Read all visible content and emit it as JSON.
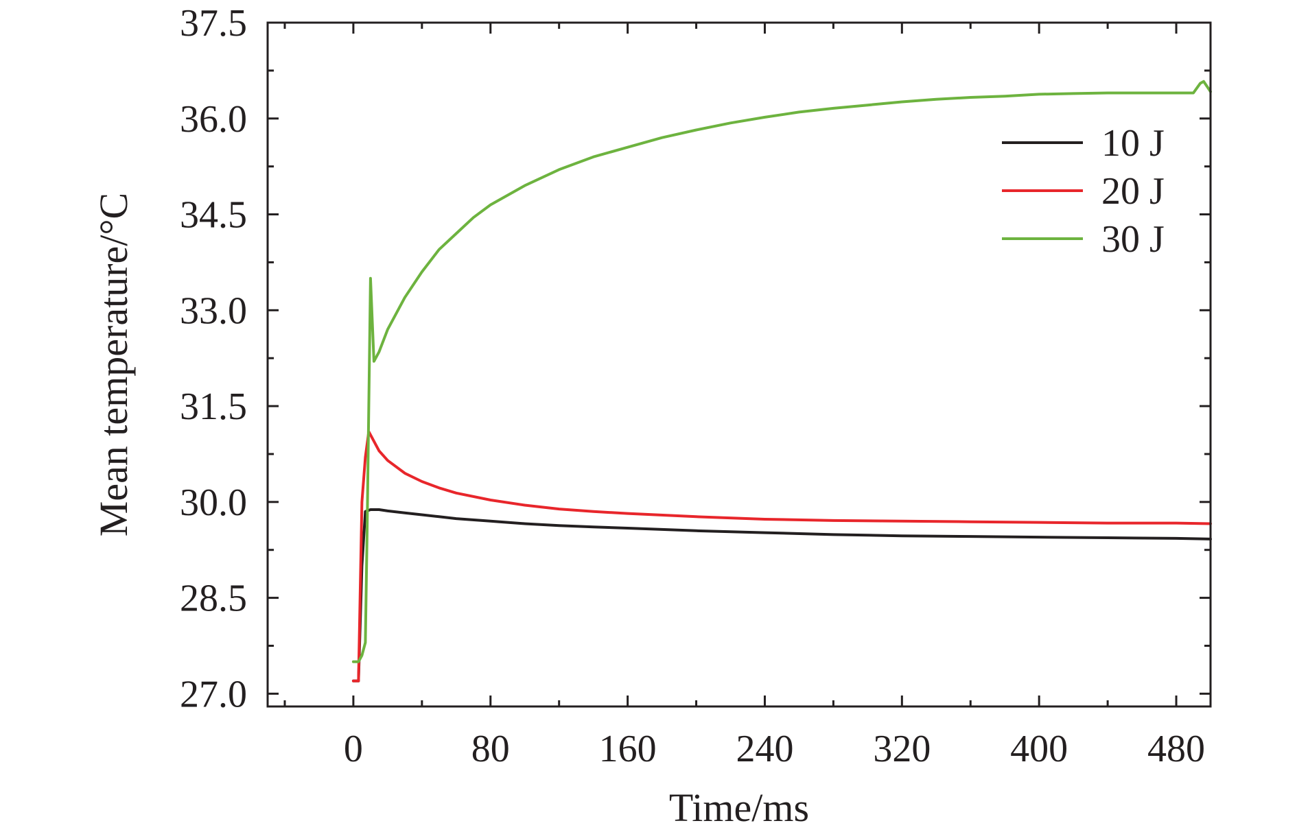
{
  "chart_data": {
    "type": "line",
    "title": "",
    "xlabel": "Time/ms",
    "ylabel": "Mean temperature/°C",
    "xlim": [
      -50,
      500
    ],
    "ylim": [
      26.8,
      37.5
    ],
    "xticks": [
      0,
      80,
      160,
      240,
      320,
      400,
      480
    ],
    "xtick_labels": [
      "0",
      "80",
      "160",
      "240",
      "320",
      "400",
      "480"
    ],
    "xminor": [
      -40,
      40,
      120,
      200,
      280,
      360,
      440
    ],
    "yticks": [
      27.0,
      28.5,
      30.0,
      31.5,
      33.0,
      34.5,
      36.0,
      37.5
    ],
    "ytick_labels": [
      "27.0",
      "28.5",
      "30.0",
      "31.5",
      "33.0",
      "34.5",
      "36.0",
      "37.5"
    ],
    "yminor": [
      27.75,
      29.25,
      30.75,
      32.25,
      33.75,
      35.25,
      36.75
    ],
    "grid": false,
    "legend_position": "top-right",
    "series": [
      {
        "name": "10 J",
        "color": "#231f20",
        "x": [
          0,
          3,
          5,
          7,
          10,
          15,
          20,
          30,
          40,
          50,
          60,
          80,
          100,
          120,
          140,
          160,
          200,
          240,
          280,
          320,
          360,
          400,
          440,
          480,
          500
        ],
        "y": [
          27.2,
          27.2,
          29.0,
          29.85,
          29.88,
          29.88,
          29.86,
          29.83,
          29.8,
          29.77,
          29.74,
          29.7,
          29.66,
          29.63,
          29.61,
          29.59,
          29.55,
          29.52,
          29.49,
          29.47,
          29.46,
          29.45,
          29.44,
          29.43,
          29.42
        ]
      },
      {
        "name": "20 J",
        "color": "#e8262b",
        "x": [
          0,
          3,
          5,
          7,
          9,
          12,
          15,
          20,
          30,
          40,
          50,
          60,
          80,
          100,
          120,
          140,
          160,
          200,
          240,
          280,
          320,
          360,
          400,
          440,
          480,
          500
        ],
        "y": [
          27.2,
          27.2,
          30.0,
          30.7,
          31.1,
          30.95,
          30.8,
          30.65,
          30.45,
          30.32,
          30.22,
          30.14,
          30.03,
          29.95,
          29.89,
          29.85,
          29.82,
          29.77,
          29.73,
          29.71,
          29.7,
          29.69,
          29.68,
          29.67,
          29.67,
          29.66
        ]
      },
      {
        "name": "30 J",
        "color": "#6db33f",
        "x": [
          0,
          3,
          5,
          7,
          8,
          10,
          12,
          15,
          20,
          30,
          40,
          50,
          60,
          70,
          80,
          100,
          120,
          140,
          160,
          180,
          200,
          220,
          240,
          260,
          280,
          300,
          320,
          340,
          360,
          380,
          400,
          420,
          440,
          460,
          480,
          490,
          494,
          496,
          500
        ],
        "y": [
          27.5,
          27.5,
          27.6,
          27.8,
          29.5,
          33.5,
          32.2,
          32.35,
          32.7,
          33.2,
          33.6,
          33.95,
          34.2,
          34.45,
          34.65,
          34.95,
          35.2,
          35.4,
          35.55,
          35.7,
          35.82,
          35.93,
          36.02,
          36.1,
          36.16,
          36.21,
          36.26,
          36.3,
          36.33,
          36.35,
          36.38,
          36.39,
          36.4,
          36.4,
          36.4,
          36.4,
          36.55,
          36.58,
          36.42
        ]
      }
    ]
  }
}
